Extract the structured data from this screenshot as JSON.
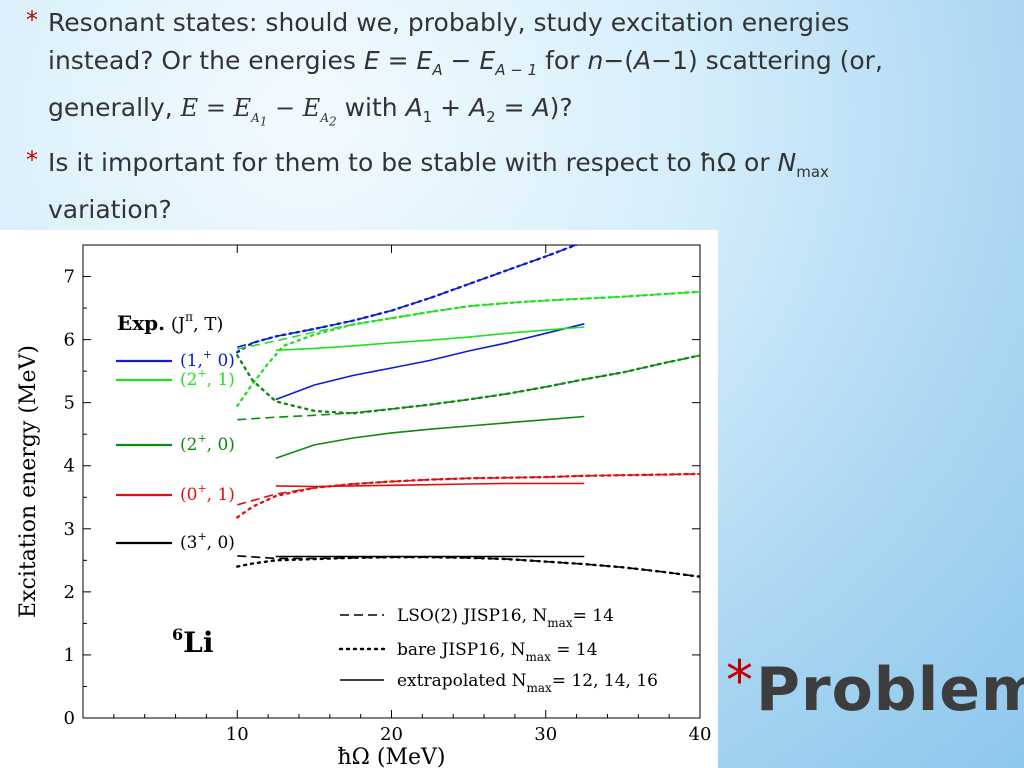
{
  "bullets": {
    "b1": {
      "star": "*",
      "line1": "Resonant states: should we, probably, study excitation energies",
      "line2a": "instead? Or the energies ",
      "eq_E": "E",
      "eq_equals": " = ",
      "eq_EA": "E",
      "eq_EA_sub": "A",
      "eq_minus": " − ",
      "eq_EA1": "E",
      "eq_EA1_sub": "A − 1",
      "line2b": " for ",
      "n": "n",
      "paren": "−(",
      "A": "A",
      "line2c": "−1) scattering (or,",
      "line3a": "generally, ",
      "f_E": "E",
      "f_eq": " = ",
      "f_E1": "E",
      "f_A1": "A",
      "f_A1_sub": "1",
      "f_minus": " − ",
      "f_E2": "E",
      "f_A2": "A",
      "f_A2_sub": "2",
      "line3b": " with ",
      "w_A1": "A",
      "w_A1_sub": "1",
      "w_plus": " + ",
      "w_A2": "A",
      "w_A2_sub": "2",
      "w_eq": " = ",
      "w_A": "A",
      "w_end": ")?"
    },
    "b2": {
      "star": "*",
      "line1a": "Is it important for them to be stable with respect to ",
      "hbar_omega": "ħΩ",
      "or": " or ",
      "N": "N",
      "N_sub": "max",
      "line2": "variation?"
    }
  },
  "slide_title": {
    "star": "*",
    "text": "Problem"
  },
  "chart_data": {
    "type": "line",
    "xlabel": "ħΩ (MeV)",
    "ylabel": "Excitation energy (MeV)",
    "xlim": [
      0,
      40
    ],
    "ylim": [
      0,
      7.5
    ],
    "x_ticks": [
      "10",
      "20",
      "30",
      "40"
    ],
    "y_ticks": [
      "0",
      "1",
      "2",
      "3",
      "4",
      "5",
      "6",
      "7"
    ],
    "nucleus": {
      "mass": "6",
      "symbol": "Li"
    },
    "exp_header": {
      "bold": "Exp.",
      "rest_open": "(J",
      "sup": "π",
      "rest_close": ", T)"
    },
    "exp_levels": [
      {
        "label": "(1,",
        "sup": "+",
        "end": " 0)",
        "energy": 5.65,
        "color": "#0a1fd0"
      },
      {
        "label": "(2",
        "sup": "+",
        "end": ", 1)",
        "energy": 5.37,
        "color": "#22e022"
      },
      {
        "label": "(2",
        "sup": "+",
        "end": ", 0)",
        "energy": 4.31,
        "color": "#0e8a0e"
      },
      {
        "label": "(0",
        "sup": "+",
        "end": ", 1)",
        "energy": 3.56,
        "color": "#e01010"
      },
      {
        "label": "(3",
        "sup": "+",
        "end": ", 0)",
        "energy": 2.19,
        "color": "#000000"
      }
    ],
    "legend": [
      {
        "style": "dashed",
        "text": "LSO(2) JISP16, N",
        "sub": "max",
        "end": "= 14"
      },
      {
        "style": "dotted",
        "text": "bare JISP16, N",
        "sub": "max",
        "end": " = 14"
      },
      {
        "style": "solid",
        "text": "extrapolated N",
        "sub": "max",
        "end": "= 12, 14, 16"
      }
    ],
    "series": [
      {
        "level": "(1+, 0)",
        "style": "dashed",
        "color": "#0a1fd0",
        "x": [
          10,
          12.5,
          15,
          17.5,
          20,
          22.5,
          25,
          27.5,
          30,
          32.5,
          35
        ],
        "y": [
          5.88,
          6.05,
          6.17,
          6.3,
          6.46,
          6.66,
          6.88,
          7.1,
          7.32,
          7.55,
          7.78
        ]
      },
      {
        "level": "(1+, 0)",
        "style": "dotted",
        "color": "#0a1fd0",
        "x": [
          10,
          11,
          12.5,
          15,
          17.5,
          20,
          22.5,
          25,
          27.5,
          30,
          32.5,
          35
        ],
        "y": [
          5.8,
          5.95,
          6.05,
          6.17,
          6.3,
          6.46,
          6.66,
          6.88,
          7.1,
          7.32,
          7.55,
          7.78
        ]
      },
      {
        "level": "(1+, 0)",
        "style": "solid",
        "color": "#0a1fd0",
        "x": [
          12.5,
          15,
          17.5,
          20,
          22.5,
          25,
          27.5,
          30,
          32.5
        ],
        "y": [
          5.05,
          5.28,
          5.43,
          5.55,
          5.67,
          5.82,
          5.95,
          6.1,
          6.25
        ]
      },
      {
        "level": "(2+, 1)",
        "style": "dashed",
        "color": "#22e022",
        "x": [
          10,
          12.5,
          15,
          17.5,
          20,
          22.5,
          25,
          27.5,
          30,
          32.5,
          35,
          37.5,
          40
        ],
        "y": [
          5.85,
          5.98,
          6.12,
          6.24,
          6.34,
          6.44,
          6.53,
          6.58,
          6.62,
          6.65,
          6.68,
          6.72,
          6.76
        ]
      },
      {
        "level": "(2+, 1)",
        "style": "dotted",
        "color": "#22e022",
        "x": [
          10,
          11,
          12,
          13,
          15,
          17.5,
          20,
          22.5,
          25,
          27.5,
          30,
          32.5,
          35,
          37.5,
          40
        ],
        "y": [
          4.95,
          5.3,
          5.62,
          5.9,
          6.08,
          6.24,
          6.34,
          6.44,
          6.53,
          6.58,
          6.62,
          6.65,
          6.68,
          6.72,
          6.76
        ]
      },
      {
        "level": "(2+, 1)",
        "style": "solid",
        "color": "#22e022",
        "x": [
          12.5,
          15,
          17.5,
          20,
          22.5,
          25,
          27.5,
          30,
          32.5
        ],
        "y": [
          5.83,
          5.86,
          5.9,
          5.95,
          5.99,
          6.04,
          6.1,
          6.15,
          6.2
        ]
      },
      {
        "level": "(2+, 0)",
        "style": "dashed",
        "color": "#0e8a0e",
        "x": [
          10,
          12.5,
          15,
          17.5,
          20,
          22.5,
          25,
          27.5,
          30,
          32.5,
          35,
          37.5,
          40
        ],
        "y": [
          4.73,
          4.77,
          4.8,
          4.84,
          4.9,
          4.97,
          5.05,
          5.14,
          5.25,
          5.37,
          5.48,
          5.62,
          5.75
        ]
      },
      {
        "level": "(2+, 0)",
        "style": "dotted",
        "color": "#0e8a0e",
        "x": [
          10,
          11,
          12.5,
          15,
          17.5,
          20,
          22.5,
          25,
          27.5,
          30,
          32.5,
          35,
          37.5,
          40
        ],
        "y": [
          5.75,
          5.35,
          5.02,
          4.87,
          4.83,
          4.9,
          4.97,
          5.05,
          5.14,
          5.25,
          5.37,
          5.48,
          5.62,
          5.75
        ]
      },
      {
        "level": "(2+, 0)",
        "style": "solid",
        "color": "#0e8a0e",
        "x": [
          12.5,
          15,
          17.5,
          20,
          22.5,
          25,
          27.5,
          30,
          32.5
        ],
        "y": [
          4.12,
          4.33,
          4.44,
          4.52,
          4.58,
          4.63,
          4.68,
          4.73,
          4.78
        ]
      },
      {
        "level": "(0+, 1)",
        "style": "dashed",
        "color": "#e01010",
        "x": [
          10,
          12.5,
          15,
          17.5,
          20,
          22.5,
          25,
          27.5,
          30,
          32.5,
          35,
          37.5,
          40
        ],
        "y": [
          3.38,
          3.55,
          3.65,
          3.71,
          3.75,
          3.78,
          3.8,
          3.81,
          3.82,
          3.84,
          3.85,
          3.86,
          3.87
        ]
      },
      {
        "level": "(0+, 1)",
        "style": "dotted",
        "color": "#e01010",
        "x": [
          10,
          11,
          12.5,
          15,
          17.5,
          20,
          22.5,
          25,
          27.5,
          30,
          32.5,
          35,
          37.5,
          40
        ],
        "y": [
          3.18,
          3.35,
          3.52,
          3.65,
          3.71,
          3.75,
          3.78,
          3.8,
          3.81,
          3.82,
          3.84,
          3.85,
          3.86,
          3.87
        ]
      },
      {
        "level": "(0+, 1)",
        "style": "solid",
        "color": "#e01010",
        "x": [
          12.5,
          15,
          17.5,
          20,
          22.5,
          25,
          27.5,
          30,
          32.5
        ],
        "y": [
          3.68,
          3.67,
          3.68,
          3.69,
          3.7,
          3.71,
          3.72,
          3.72,
          3.72
        ]
      },
      {
        "level": "(3+, 0)",
        "style": "dashed",
        "color": "#000000",
        "x": [
          10,
          12.5,
          15,
          17.5,
          20,
          22.5,
          25,
          27.5,
          30,
          32.5,
          35,
          37.5,
          40
        ],
        "y": [
          2.57,
          2.53,
          2.53,
          2.54,
          2.55,
          2.55,
          2.54,
          2.52,
          2.48,
          2.44,
          2.39,
          2.32,
          2.24
        ]
      },
      {
        "level": "(3+, 0)",
        "style": "dotted",
        "color": "#000000",
        "x": [
          10,
          11,
          12.5,
          15,
          17.5,
          20,
          22.5,
          25,
          27.5,
          30,
          32.5,
          35,
          37.5,
          40
        ],
        "y": [
          2.4,
          2.45,
          2.5,
          2.52,
          2.54,
          2.55,
          2.55,
          2.54,
          2.52,
          2.48,
          2.44,
          2.39,
          2.32,
          2.24
        ]
      },
      {
        "level": "(3+, 0)",
        "style": "solid",
        "color": "#000000",
        "x": [
          12.5,
          15,
          17.5,
          20,
          22.5,
          25,
          27.5,
          30,
          32.5
        ],
        "y": [
          2.56,
          2.56,
          2.56,
          2.56,
          2.56,
          2.56,
          2.56,
          2.56,
          2.56
        ]
      }
    ]
  }
}
